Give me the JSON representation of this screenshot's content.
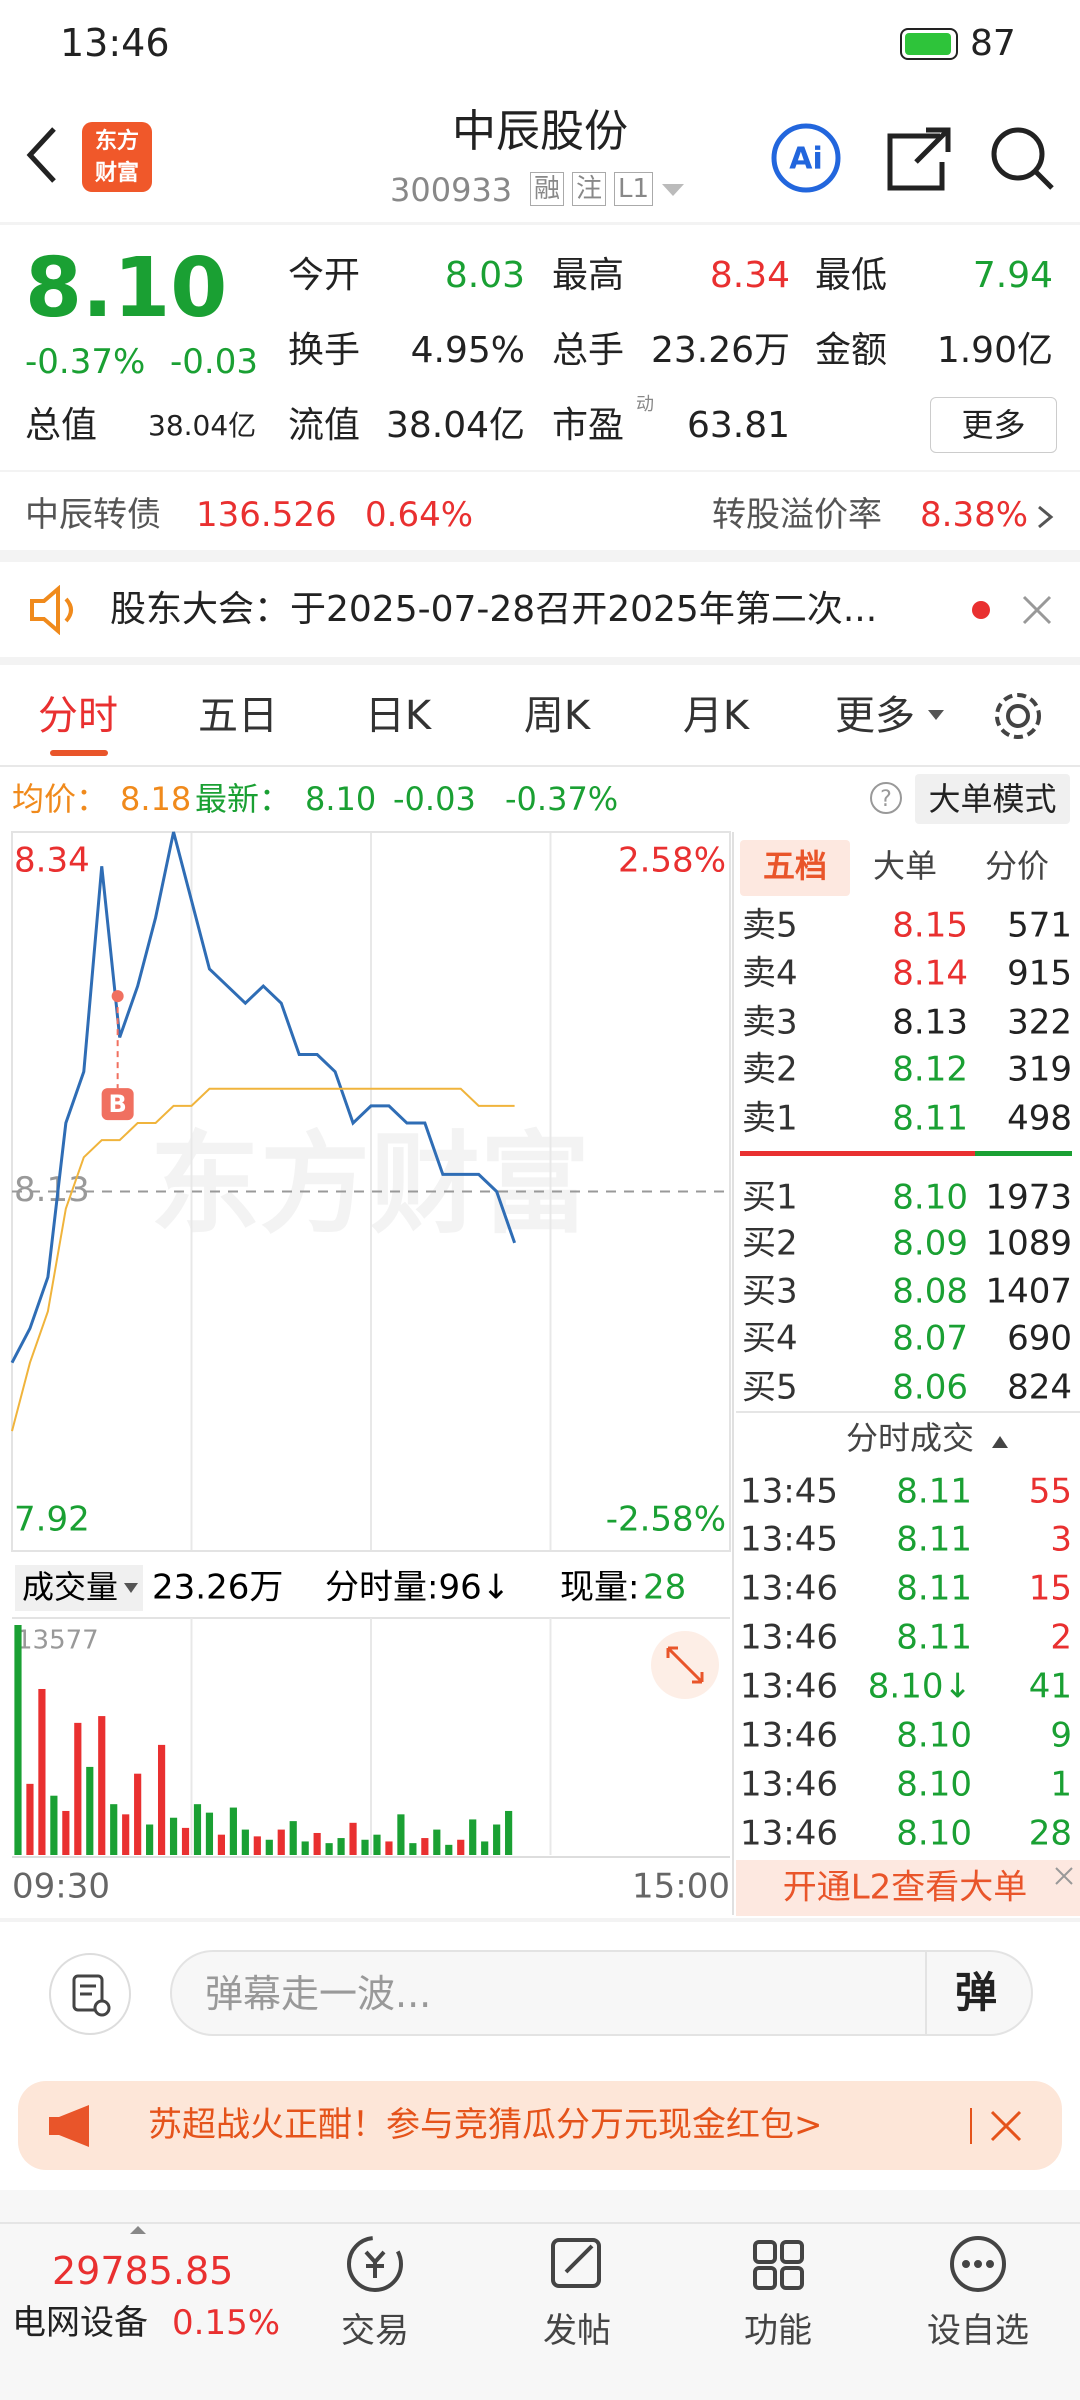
{
  "status_bar": {
    "time": "13:46",
    "battery": "87"
  },
  "header": {
    "logo": [
      "东方",
      "财富"
    ],
    "title": "中辰股份",
    "code": "300933",
    "tags": [
      "融",
      "注",
      "L1"
    ]
  },
  "quote": {
    "price": "8.10",
    "change_pct": "-0.37%",
    "change": "-0.03",
    "open_label": "今开",
    "open": "8.03",
    "high_label": "最高",
    "high": "8.34",
    "low_label": "最低",
    "low": "7.94",
    "turnover_label": "换手",
    "turnover": "4.95%",
    "volume_label": "总手",
    "volume": "23.26万",
    "amount_label": "金额",
    "amount": "1.90亿",
    "mcap_label": "总值",
    "mcap": "38.04亿",
    "float_label": "流值",
    "float": "38.04亿",
    "pe_label": "市盈",
    "pe_sup": "动",
    "pe": "63.81",
    "more": "更多"
  },
  "bond": {
    "name": "中辰转债",
    "price": "136.526",
    "pct": "0.64%",
    "premium_label": "转股溢价率",
    "premium": "8.38%"
  },
  "notice": "股东大会：于2025-07-28召开2025年第二次...",
  "tabs": [
    "分时",
    "五日",
    "日K",
    "周K",
    "月K",
    "更多"
  ],
  "summary": {
    "avg_label": "均价：",
    "avg": "8.18",
    "last_label": "最新：",
    "last": "8.10",
    "change": "-0.03",
    "pct": "-0.37%",
    "mode": "大单模式"
  },
  "watermark": "东方财富",
  "trade_marker": "B",
  "volume_header": {
    "label": "成交量",
    "total": "23.26万",
    "period": "分时量:96↓",
    "current_label": "现量:",
    "current": "28"
  },
  "chart_data": [
    {
      "type": "line",
      "ylim": [
        7.92,
        8.34
      ],
      "yticks": [
        7.92,
        8.13,
        8.34
      ],
      "y2lim": [
        -2.58,
        2.58
      ],
      "y2ticks": [
        {
          "value": -2.58,
          "label": "-2.58%"
        },
        {
          "value": 2.58,
          "label": "2.58%"
        }
      ],
      "x_labels": [
        "09:30",
        "15:00"
      ],
      "series": [
        {
          "color": "#2f6db5",
          "values": [
            8.03,
            8.05,
            8.08,
            8.17,
            8.2,
            8.32,
            8.22,
            8.25,
            8.29,
            8.34,
            8.3,
            8.26,
            8.25,
            8.24,
            8.25,
            8.24,
            8.21,
            8.21,
            8.2,
            8.17,
            8.18,
            8.18,
            8.17,
            8.17,
            8.14,
            8.14,
            8.14,
            8.13,
            8.1
          ]
        },
        {
          "color": "#f0b43c",
          "values": [
            7.99,
            8.03,
            8.06,
            8.12,
            8.15,
            8.16,
            8.16,
            8.17,
            8.17,
            8.18,
            8.18,
            8.19,
            8.19,
            8.19,
            8.19,
            8.19,
            8.19,
            8.19,
            8.19,
            8.19,
            8.19,
            8.19,
            8.19,
            8.19,
            8.19,
            8.19,
            8.18,
            8.18,
            8.18
          ]
        }
      ]
    },
    {
      "type": "bar",
      "ylim": [
        0,
        13577
      ],
      "yticks": [
        13577
      ],
      "values": [
        13577,
        4200,
        9800,
        3500,
        2600,
        7800,
        5200,
        8200,
        3000,
        2400,
        4800,
        1800,
        6500,
        2200,
        1600,
        3000,
        2500,
        1200,
        2800,
        1500,
        1100,
        900,
        1500,
        2000,
        800,
        1300,
        700,
        1000,
        1900,
        900,
        1200,
        800,
        2400,
        700,
        1000,
        1500,
        600,
        900,
        2100,
        800,
        1800,
        2600
      ],
      "colors": [
        "#1aa033",
        "#e93030",
        "#e93030",
        "#1aa033",
        "#e93030",
        "#e93030",
        "#1aa033",
        "#e93030",
        "#1aa033",
        "#e93030",
        "#e93030",
        "#1aa033",
        "#e93030",
        "#1aa033",
        "#e93030",
        "#1aa033",
        "#1aa033",
        "#e93030",
        "#1aa033",
        "#1aa033",
        "#e93030",
        "#1aa033",
        "#e93030",
        "#1aa033",
        "#1aa033",
        "#e93030",
        "#1aa033",
        "#1aa033",
        "#e93030",
        "#1aa033",
        "#1aa033",
        "#e93030",
        "#1aa033",
        "#1aa033",
        "#e93030",
        "#1aa033",
        "#1aa033",
        "#e93030",
        "#1aa033",
        "#1aa033",
        "#1aa033",
        "#1aa033"
      ]
    }
  ],
  "order_book": {
    "tabs": [
      "五档",
      "大单",
      "分价"
    ],
    "asks": [
      [
        "卖5",
        "8.15",
        "571"
      ],
      [
        "卖4",
        "8.14",
        "915"
      ],
      [
        "卖3",
        "8.13",
        "322"
      ],
      [
        "卖2",
        "8.12",
        "319"
      ],
      [
        "卖1",
        "8.11",
        "498"
      ]
    ],
    "bids": [
      [
        "买1",
        "8.10",
        "1973"
      ],
      [
        "买2",
        "8.09",
        "1089"
      ],
      [
        "买3",
        "8.08",
        "1407"
      ],
      [
        "买4",
        "8.07",
        "690"
      ],
      [
        "买5",
        "8.06",
        "824"
      ]
    ]
  },
  "trades": {
    "title": "分时成交",
    "rows": [
      [
        "13:45",
        "8.11",
        "55"
      ],
      [
        "13:45",
        "8.11",
        "3"
      ],
      [
        "13:46",
        "8.11",
        "15"
      ],
      [
        "13:46",
        "8.11",
        "2"
      ],
      [
        "13:46",
        "8.10↓",
        "41"
      ],
      [
        "13:46",
        "8.10",
        "9"
      ],
      [
        "13:46",
        "8.10",
        "1"
      ],
      [
        "13:46",
        "8.10",
        "28"
      ]
    ]
  },
  "l2": "开通L2查看大单",
  "comment": {
    "placeholder": "弹幕走一波...",
    "button": "弹"
  },
  "banner": "苏超战火正酣！参与竞猜瓜分万元现金红包>",
  "bottom_nav": {
    "index_value": "29785.85",
    "index_name": "电网设备",
    "index_pct": "0.15%",
    "items": [
      "交易",
      "发帖",
      "功能",
      "设自选"
    ]
  }
}
